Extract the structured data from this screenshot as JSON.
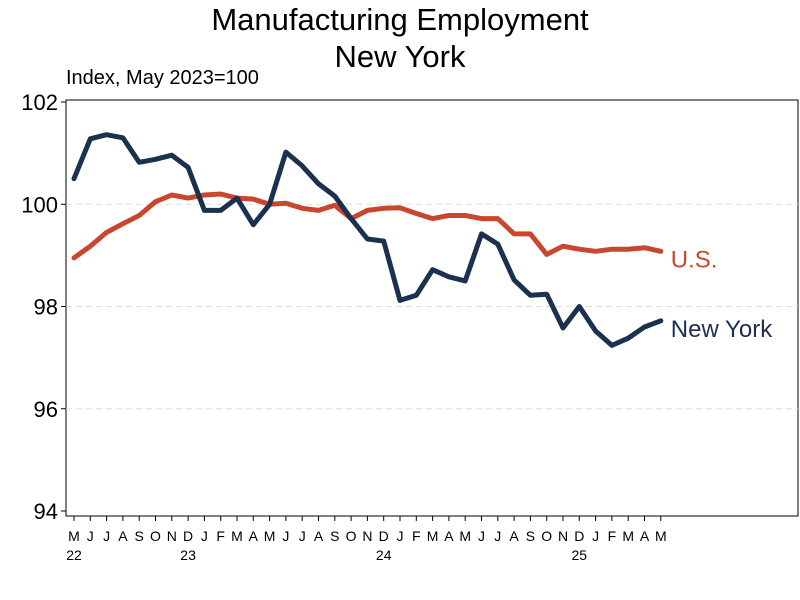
{
  "chart_data": {
    "type": "line",
    "title": "Manufacturing Employment",
    "subtitle": "New York",
    "ylabel": "Index, May 2023=100",
    "ylim": [
      94,
      102
    ],
    "yticks": [
      94,
      96,
      98,
      100,
      102
    ],
    "grid": "horizontal dashed",
    "month_labels": [
      "M",
      "J",
      "J",
      "A",
      "S",
      "O",
      "N",
      "D",
      "J",
      "F",
      "M",
      "A",
      "M",
      "J",
      "J",
      "A",
      "S",
      "O",
      "N",
      "D",
      "J",
      "F",
      "M",
      "A",
      "M",
      "J",
      "J",
      "A",
      "S",
      "O",
      "N",
      "D",
      "J",
      "F",
      "M",
      "A",
      "M"
    ],
    "year_labels": [
      {
        "label": "22",
        "month_index": 0
      },
      {
        "label": "23",
        "month_index": 7
      },
      {
        "label": "24",
        "month_index": 19
      },
      {
        "label": "25",
        "month_index": 31
      }
    ],
    "x_start": "2022-05",
    "x_end": "2025-05",
    "series": [
      {
        "name": "U.S.",
        "color": "#c8472e",
        "values": [
          98.95,
          99.18,
          99.45,
          99.62,
          99.78,
          100.05,
          100.18,
          100.12,
          100.18,
          100.2,
          100.12,
          100.1,
          100.0,
          100.02,
          99.92,
          99.88,
          99.98,
          99.72,
          99.88,
          99.92,
          99.93,
          99.82,
          99.72,
          99.78,
          99.78,
          99.72,
          99.72,
          99.42,
          99.42,
          99.02,
          99.18,
          99.12,
          99.08,
          99.12,
          99.12,
          99.15,
          99.08
        ]
      },
      {
        "name": "New York",
        "color": "#1c3050",
        "values": [
          100.5,
          101.28,
          101.36,
          101.3,
          100.82,
          100.88,
          100.96,
          100.72,
          99.88,
          99.88,
          100.12,
          99.6,
          100.0,
          101.02,
          100.75,
          100.4,
          100.16,
          99.72,
          99.32,
          99.28,
          98.12,
          98.22,
          98.72,
          98.58,
          98.5,
          99.42,
          99.22,
          98.52,
          98.22,
          98.24,
          97.58,
          98.0,
          97.52,
          97.24,
          97.38,
          97.6,
          97.72
        ]
      }
    ]
  }
}
